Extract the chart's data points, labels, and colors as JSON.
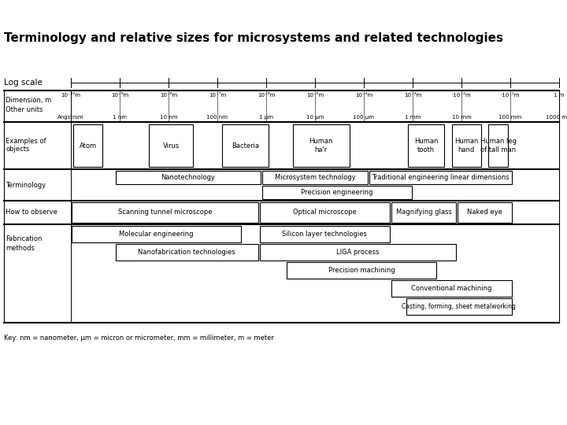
{
  "title": "Terminology and relative sizes for microsystems and related technologies",
  "bg": "#ffffff",
  "dim_labels": [
    "10⁻¹⁰m",
    "10⁻⁹m",
    "10⁻⁸m",
    "10⁻⁷m",
    "10⁻⁶m",
    "10⁻⁵m",
    "10⁻⁴m",
    "10⁻³m",
    "·10⁻²m",
    "·10⁻¹m",
    "1 m"
  ],
  "other_units": [
    "Angstrom",
    "1 nm",
    "10 nm",
    "100 nm",
    "1 μm",
    "10 μm",
    "100 μm",
    "1 mm",
    "10 mm",
    "100 mm",
    "1000 mm"
  ],
  "key": "Key: nm = nanometer, μm = micron or micrometer, mm = millimeter, m = meter"
}
